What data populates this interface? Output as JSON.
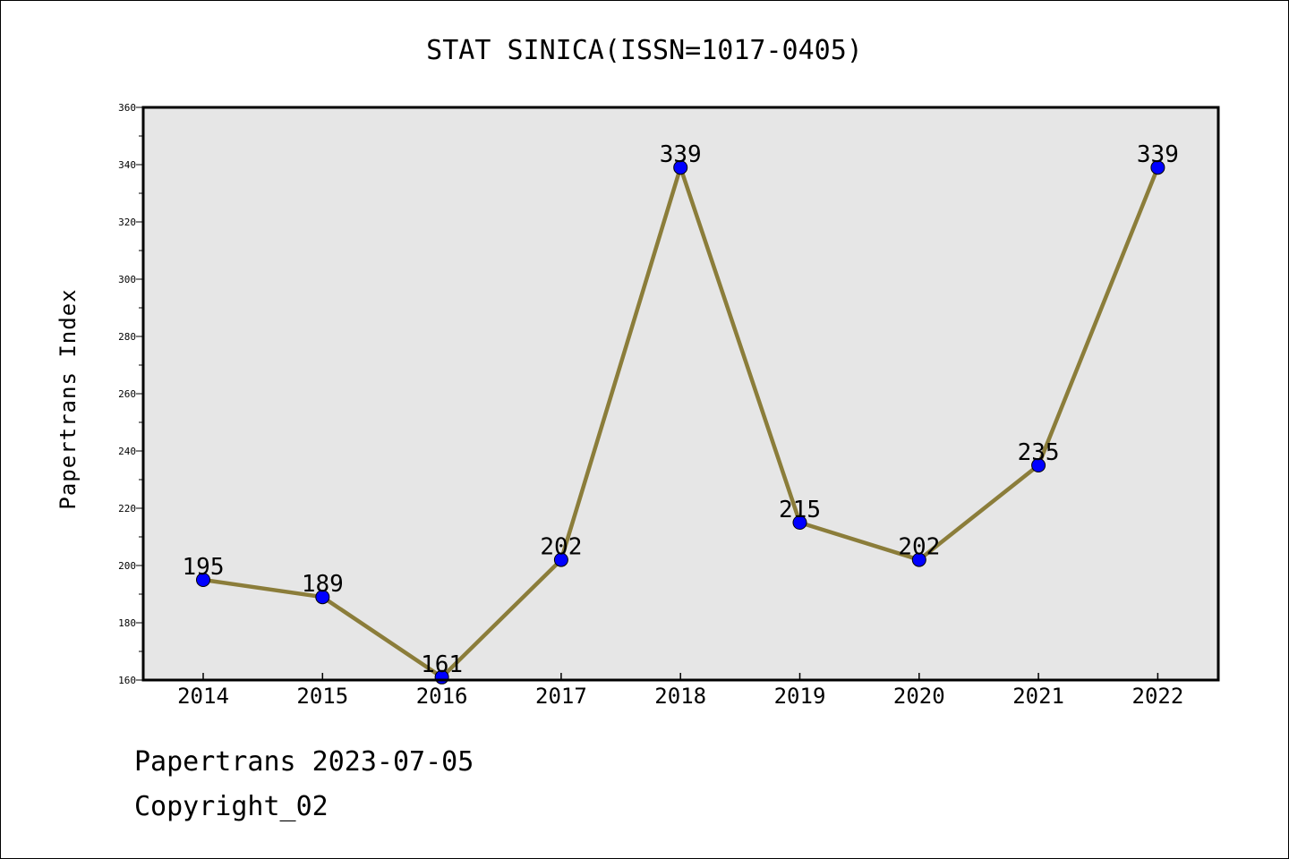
{
  "chart_data": {
    "type": "line",
    "title": "STAT SINICA(ISSN=1017-0405)",
    "xlabel": "",
    "ylabel": "Papertrans Index",
    "categories": [
      "2014",
      "2015",
      "2016",
      "2017",
      "2018",
      "2019",
      "2020",
      "2021",
      "2022"
    ],
    "series": [
      {
        "values": [
          195,
          189,
          161,
          202,
          339,
          215,
          202,
          235,
          339
        ]
      }
    ],
    "data_labels": [
      "195",
      "189",
      "161",
      "202",
      "339",
      "215",
      "202",
      "235",
      "339"
    ],
    "ylim": [
      160,
      360
    ],
    "yticks": [
      160,
      180,
      200,
      220,
      240,
      260,
      280,
      300,
      320,
      340,
      360
    ],
    "ytick_labels": [
      "160",
      "180",
      "200",
      "220",
      "240",
      "260",
      "280",
      "300",
      "320",
      "340",
      "360"
    ],
    "grid": false,
    "plot_background": "#e6e6e6",
    "line_color": "#8b7d3a",
    "marker_color": "#0000ff"
  },
  "footer": {
    "line1": "Papertrans 2023-07-05",
    "line2": "Copyright_02"
  }
}
